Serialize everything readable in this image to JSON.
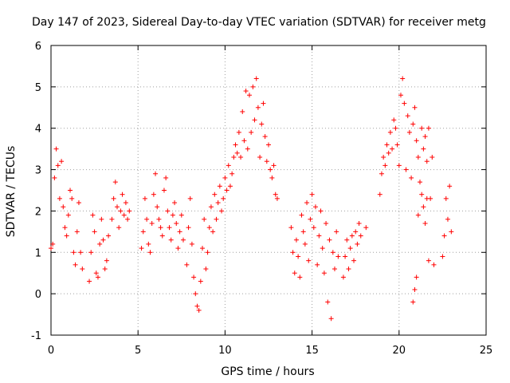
{
  "chart_data": {
    "type": "scatter",
    "title": "Day 147 of 2023, Sidereal Day-to-day VTEC variation (SDTVAR) for receiver metg",
    "xlabel": "GPS time / hours",
    "ylabel": "SDTVAR / TECUs",
    "xlim": [
      0,
      25
    ],
    "ylim": [
      -1,
      6
    ],
    "xticks": [
      0,
      5,
      10,
      15,
      20,
      25
    ],
    "yticks": [
      -1,
      0,
      1,
      2,
      3,
      4,
      5,
      6
    ],
    "grid": true,
    "marker": "+",
    "color": "#ff0000",
    "series": [
      {
        "name": "SDTVAR",
        "segments": [
          {
            "x": [
              0.0,
              0.1,
              0.2,
              0.3,
              0.4
            ],
            "y": [
              1.1,
              1.2,
              2.8,
              3.5,
              3.1
            ]
          },
          {
            "x": [
              0.5,
              0.6,
              0.7,
              0.8,
              0.9,
              1.0,
              1.1,
              1.2,
              1.3,
              1.4,
              1.5,
              1.6,
              1.7,
              1.8
            ],
            "y": [
              2.3,
              3.2,
              2.1,
              1.6,
              1.4,
              1.9,
              2.5,
              2.3,
              1.0,
              0.7,
              1.5,
              2.2,
              1.0,
              0.6
            ]
          },
          {
            "x": [
              2.2,
              2.3,
              2.4,
              2.5,
              2.6,
              2.7,
              2.8,
              2.9,
              3.0,
              3.1,
              3.2,
              3.3
            ],
            "y": [
              0.3,
              1.0,
              1.9,
              1.5,
              0.5,
              0.4,
              1.2,
              1.8,
              1.3,
              0.6,
              0.8,
              1.4
            ]
          },
          {
            "x": [
              3.5,
              3.6,
              3.7,
              3.8,
              3.9,
              4.0,
              4.1,
              4.2,
              4.3,
              4.4,
              4.5
            ],
            "y": [
              1.8,
              2.3,
              2.7,
              2.1,
              1.6,
              2.0,
              2.4,
              1.9,
              2.2,
              1.8,
              2.0
            ]
          },
          {
            "x": [
              5.2,
              5.3,
              5.4,
              5.5,
              5.6,
              5.7,
              5.8,
              5.9,
              6.0,
              6.1,
              6.2,
              6.3,
              6.4,
              6.5,
              6.6,
              6.7,
              6.8,
              6.9,
              7.0,
              7.1,
              7.2,
              7.3,
              7.4,
              7.5,
              7.6
            ],
            "y": [
              1.1,
              1.5,
              2.3,
              1.8,
              1.2,
              1.0,
              1.7,
              2.4,
              2.9,
              2.1,
              1.8,
              1.6,
              1.4,
              2.5,
              2.8,
              2.0,
              1.6,
              1.3,
              1.9,
              2.2,
              1.7,
              1.1,
              1.5,
              1.9,
              1.3
            ]
          },
          {
            "x": [
              7.8,
              7.9,
              8.0,
              8.1,
              8.2,
              8.3,
              8.4,
              8.5,
              8.6,
              8.7,
              8.8,
              8.9,
              9.0,
              9.1,
              9.2,
              9.3,
              9.4,
              9.5,
              9.6,
              9.7,
              9.8,
              9.9,
              10.0,
              10.1,
              10.2,
              10.3,
              10.4,
              10.5
            ],
            "y": [
              0.7,
              1.6,
              2.3,
              1.2,
              0.4,
              0.0,
              -0.3,
              -0.4,
              0.3,
              1.1,
              1.8,
              0.6,
              1.0,
              1.6,
              2.1,
              1.5,
              2.4,
              1.8,
              2.2,
              2.6,
              2.0,
              2.3,
              2.8,
              2.5,
              3.1,
              2.6,
              2.9,
              3.3
            ]
          },
          {
            "x": [
              10.6,
              10.7,
              10.8,
              10.9,
              11.0,
              11.1,
              11.2,
              11.3,
              11.4,
              11.5,
              11.6,
              11.7,
              11.8,
              11.9,
              12.0,
              12.1,
              12.2,
              12.3,
              12.4,
              12.5,
              12.6,
              12.7,
              12.8,
              12.9,
              13.0
            ],
            "y": [
              3.6,
              3.4,
              3.9,
              3.3,
              4.4,
              3.7,
              4.9,
              3.5,
              4.8,
              3.9,
              5.0,
              4.2,
              5.2,
              4.5,
              3.3,
              4.1,
              4.6,
              3.8,
              3.2,
              3.6,
              3.0,
              2.8,
              3.1,
              2.4,
              2.3
            ]
          },
          {
            "x": [
              13.8,
              13.9,
              14.0,
              14.1,
              14.2,
              14.3,
              14.4,
              14.5,
              14.6,
              14.7,
              14.8,
              14.9,
              15.0,
              15.1,
              15.2,
              15.3,
              15.4,
              15.5,
              15.6,
              15.7,
              15.8,
              15.9,
              16.0,
              16.1,
              16.2,
              16.3,
              16.4,
              16.5
            ],
            "y": [
              1.6,
              1.0,
              0.5,
              1.3,
              0.9,
              0.4,
              1.9,
              1.5,
              1.2,
              2.2,
              0.8,
              1.8,
              2.4,
              1.6,
              2.1,
              0.7,
              1.4,
              2.0,
              1.1,
              0.5,
              1.7,
              -0.2,
              1.3,
              -0.6,
              1.0,
              0.6,
              1.5,
              0.9
            ]
          },
          {
            "x": [
              16.8,
              16.9,
              17.0,
              17.1,
              17.2,
              17.3,
              17.4,
              17.5,
              17.6,
              17.7,
              17.8,
              18.1
            ],
            "y": [
              0.4,
              0.9,
              1.3,
              0.6,
              1.1,
              1.4,
              0.8,
              1.5,
              1.2,
              1.7,
              1.4,
              1.6
            ]
          },
          {
            "x": [
              18.9,
              19.0,
              19.1,
              19.2,
              19.3,
              19.4,
              19.5,
              19.6,
              19.7,
              19.8,
              19.9,
              20.0,
              20.1,
              20.2,
              20.3,
              20.4,
              20.5,
              20.6,
              20.7,
              20.8,
              20.9,
              21.0,
              21.1,
              21.2,
              21.3,
              21.4,
              21.5,
              21.6,
              21.7,
              21.8,
              21.9
            ],
            "y": [
              2.4,
              2.9,
              3.3,
              3.1,
              3.6,
              3.4,
              3.9,
              3.5,
              4.2,
              4.0,
              3.6,
              3.1,
              4.8,
              5.2,
              4.6,
              3.0,
              4.3,
              3.9,
              2.8,
              4.1,
              4.5,
              3.7,
              3.3,
              2.7,
              4.0,
              3.5,
              3.8,
              3.2,
              4.0,
              2.3,
              3.3
            ]
          },
          {
            "x": [
              20.8,
              20.9,
              21.0,
              21.1,
              21.3,
              21.4,
              21.5,
              21.6,
              21.7,
              22.0
            ],
            "y": [
              -0.2,
              0.1,
              0.4,
              1.9,
              2.4,
              2.1,
              1.7,
              2.3,
              0.8,
              0.7
            ]
          },
          {
            "x": [
              22.5,
              22.6,
              22.7,
              22.8,
              22.9,
              23.0
            ],
            "y": [
              0.9,
              1.4,
              2.3,
              1.8,
              2.6,
              1.5
            ]
          }
        ]
      }
    ]
  }
}
